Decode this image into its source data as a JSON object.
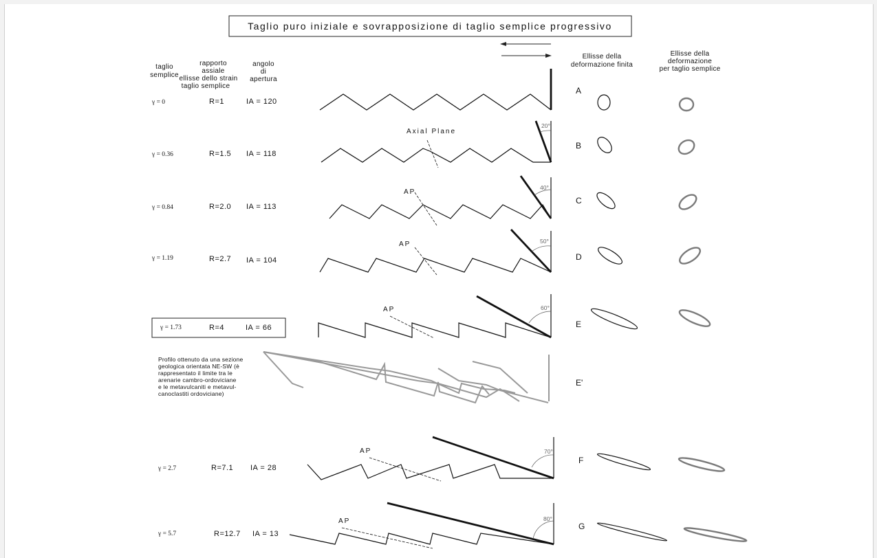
{
  "title": "Taglio puro iniziale e sovrapposizione di taglio semplice progressivo",
  "headers": {
    "gamma": [
      "taglio",
      "semplice"
    ],
    "ratio": [
      "rapporto",
      "assiale",
      "ellisse  dello  strain",
      "taglio  semplice"
    ],
    "angle": [
      "angolo",
      "di",
      "apertura"
    ],
    "finite": [
      "Ellisse  della",
      "deformazione  finita"
    ],
    "simple": [
      "Ellisse    della",
      "deformazione",
      "per  taglio  semplice"
    ]
  },
  "rows": [
    {
      "letter": "A",
      "gamma": "γ = 0",
      "ratio": "R=1",
      "ia": "IA  =  120",
      "angle": "",
      "axial": ""
    },
    {
      "letter": "B",
      "gamma": "γ = 0.36",
      "ratio": "R=1.5",
      "ia": "IA  =  118",
      "angle": "20°",
      "axial": "Axial   Plane"
    },
    {
      "letter": "C",
      "gamma": "γ = 0.84",
      "ratio": "R=2.0",
      "ia": "IA  =  113",
      "angle": "40°",
      "axial": "AP"
    },
    {
      "letter": "D",
      "gamma": "γ = 1.19",
      "ratio": "R=2.7",
      "ia": "IA  =  104",
      "angle": "50°",
      "axial": "AP"
    },
    {
      "letter": "E",
      "gamma": "γ = 1.73",
      "ratio": "R=4",
      "ia": "IA  =  66",
      "angle": "60°",
      "axial": "AP"
    },
    {
      "letter": "E'",
      "gamma": "",
      "ratio": "",
      "ia": "",
      "angle": "",
      "axial": ""
    },
    {
      "letter": "F",
      "gamma": "γ = 2.7",
      "ratio": "R=7.1",
      "ia": "IA  =  28",
      "angle": "70°",
      "axial": "AP"
    },
    {
      "letter": "G",
      "gamma": "γ = 5.7",
      "ratio": "R=12.7",
      "ia": "IA  =  13",
      "angle": "80°",
      "axial": "AP"
    }
  ],
  "profile_note": [
    "Profilo  ottenuto  da  una  sezione",
    "geologica  orientata  NE-SW  (è",
    "rappresentato  il  limite  tra  le",
    "arenarie   cambro-ordoviciane",
    "e  le  metavulcaniti  e  metavul-",
    "canoclastiti   ordoviciane)"
  ],
  "colors": {
    "ink": "#111111",
    "profile": "#999999",
    "ellipse_simple": "#7a7a7a",
    "angle_text": "#666666"
  },
  "icons": [
    "arrow-left-icon",
    "arrow-right-icon"
  ]
}
